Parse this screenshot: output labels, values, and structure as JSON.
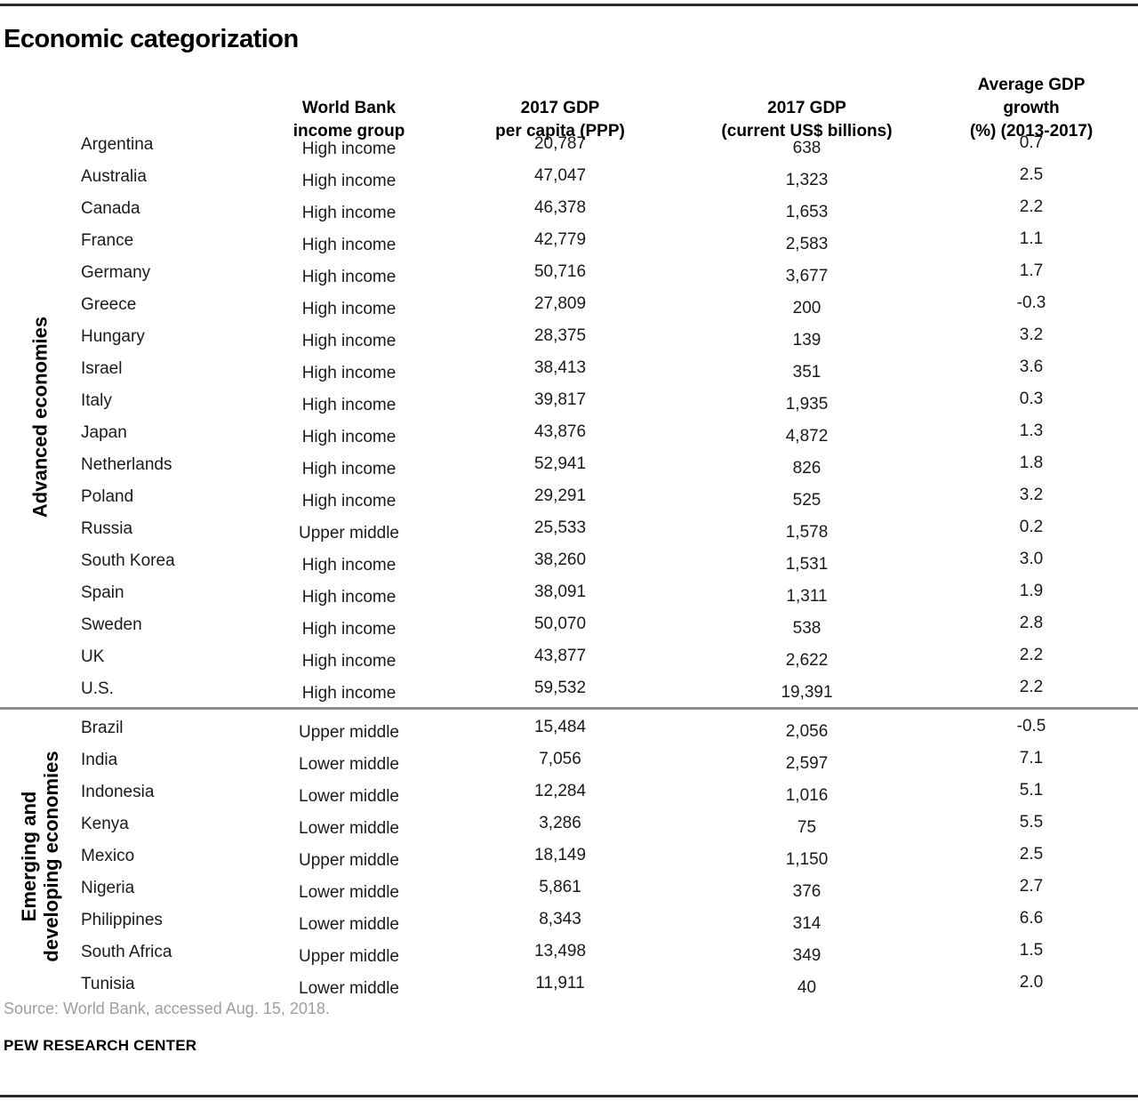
{
  "title": "Economic categorization",
  "colors": {
    "text": "#1a1a1a",
    "source_gray": "#9e9e9e",
    "section_divider": "#8c8c8c",
    "top_bottom_rule": "#2b2b2b"
  },
  "chart_data": {
    "type": "table",
    "title": "Economic categorization",
    "col_headers": [
      [
        "World Bank",
        "income group"
      ],
      [
        "2017 GDP",
        "per capita (PPP)"
      ],
      [
        "2017 GDP",
        "(current US$ billions)"
      ],
      [
        "Average GDP growth",
        "(%) (2013-2017)"
      ]
    ],
    "sections": [
      {
        "label": "Advanced economies",
        "label_lines": [
          "Advanced economies"
        ],
        "rows": [
          {
            "country": "Argentina",
            "income_group": "High income",
            "gdp_per_capita_ppp": "20,787",
            "gdp_current_usd_billions": "638",
            "avg_gdp_growth_pct": "0.7"
          },
          {
            "country": "Australia",
            "income_group": "High income",
            "gdp_per_capita_ppp": "47,047",
            "gdp_current_usd_billions": "1,323",
            "avg_gdp_growth_pct": "2.5"
          },
          {
            "country": "Canada",
            "income_group": "High income",
            "gdp_per_capita_ppp": "46,378",
            "gdp_current_usd_billions": "1,653",
            "avg_gdp_growth_pct": "2.2"
          },
          {
            "country": "France",
            "income_group": "High income",
            "gdp_per_capita_ppp": "42,779",
            "gdp_current_usd_billions": "2,583",
            "avg_gdp_growth_pct": "1.1"
          },
          {
            "country": "Germany",
            "income_group": "High income",
            "gdp_per_capita_ppp": "50,716",
            "gdp_current_usd_billions": "3,677",
            "avg_gdp_growth_pct": "1.7"
          },
          {
            "country": "Greece",
            "income_group": "High income",
            "gdp_per_capita_ppp": "27,809",
            "gdp_current_usd_billions": "200",
            "avg_gdp_growth_pct": "-0.3"
          },
          {
            "country": "Hungary",
            "income_group": "High income",
            "gdp_per_capita_ppp": "28,375",
            "gdp_current_usd_billions": "139",
            "avg_gdp_growth_pct": "3.2"
          },
          {
            "country": "Israel",
            "income_group": "High income",
            "gdp_per_capita_ppp": "38,413",
            "gdp_current_usd_billions": "351",
            "avg_gdp_growth_pct": "3.6"
          },
          {
            "country": "Italy",
            "income_group": "High income",
            "gdp_per_capita_ppp": "39,817",
            "gdp_current_usd_billions": "1,935",
            "avg_gdp_growth_pct": "0.3"
          },
          {
            "country": "Japan",
            "income_group": "High income",
            "gdp_per_capita_ppp": "43,876",
            "gdp_current_usd_billions": "4,872",
            "avg_gdp_growth_pct": "1.3"
          },
          {
            "country": "Netherlands",
            "income_group": "High income",
            "gdp_per_capita_ppp": "52,941",
            "gdp_current_usd_billions": "826",
            "avg_gdp_growth_pct": "1.8"
          },
          {
            "country": "Poland",
            "income_group": "High income",
            "gdp_per_capita_ppp": "29,291",
            "gdp_current_usd_billions": "525",
            "avg_gdp_growth_pct": "3.2"
          },
          {
            "country": "Russia",
            "income_group": "Upper middle",
            "gdp_per_capita_ppp": "25,533",
            "gdp_current_usd_billions": "1,578",
            "avg_gdp_growth_pct": "0.2"
          },
          {
            "country": "South Korea",
            "income_group": "High income",
            "gdp_per_capita_ppp": "38,260",
            "gdp_current_usd_billions": "1,531",
            "avg_gdp_growth_pct": "3.0"
          },
          {
            "country": "Spain",
            "income_group": "High income",
            "gdp_per_capita_ppp": "38,091",
            "gdp_current_usd_billions": "1,311",
            "avg_gdp_growth_pct": "1.9"
          },
          {
            "country": "Sweden",
            "income_group": "High income",
            "gdp_per_capita_ppp": "50,070",
            "gdp_current_usd_billions": "538",
            "avg_gdp_growth_pct": "2.8"
          },
          {
            "country": "UK",
            "income_group": "High income",
            "gdp_per_capita_ppp": "43,877",
            "gdp_current_usd_billions": "2,622",
            "avg_gdp_growth_pct": "2.2"
          },
          {
            "country": "U.S.",
            "income_group": "High income",
            "gdp_per_capita_ppp": "59,532",
            "gdp_current_usd_billions": "19,391",
            "avg_gdp_growth_pct": "2.2"
          }
        ]
      },
      {
        "label": "Emerging and developing economies",
        "label_lines": [
          "Emerging and",
          "developing economies"
        ],
        "rows": [
          {
            "country": "Brazil",
            "income_group": "Upper middle",
            "gdp_per_capita_ppp": "15,484",
            "gdp_current_usd_billions": "2,056",
            "avg_gdp_growth_pct": "-0.5"
          },
          {
            "country": "India",
            "income_group": "Lower middle",
            "gdp_per_capita_ppp": "7,056",
            "gdp_current_usd_billions": "2,597",
            "avg_gdp_growth_pct": "7.1"
          },
          {
            "country": "Indonesia",
            "income_group": "Lower middle",
            "gdp_per_capita_ppp": "12,284",
            "gdp_current_usd_billions": "1,016",
            "avg_gdp_growth_pct": "5.1"
          },
          {
            "country": "Kenya",
            "income_group": "Lower middle",
            "gdp_per_capita_ppp": "3,286",
            "gdp_current_usd_billions": "75",
            "avg_gdp_growth_pct": "5.5"
          },
          {
            "country": "Mexico",
            "income_group": "Upper middle",
            "gdp_per_capita_ppp": "18,149",
            "gdp_current_usd_billions": "1,150",
            "avg_gdp_growth_pct": "2.5"
          },
          {
            "country": "Nigeria",
            "income_group": "Lower middle",
            "gdp_per_capita_ppp": "5,861",
            "gdp_current_usd_billions": "376",
            "avg_gdp_growth_pct": "2.7"
          },
          {
            "country": "Philippines",
            "income_group": "Lower middle",
            "gdp_per_capita_ppp": "8,343",
            "gdp_current_usd_billions": "314",
            "avg_gdp_growth_pct": "6.6"
          },
          {
            "country": "South Africa",
            "income_group": "Upper middle",
            "gdp_per_capita_ppp": "13,498",
            "gdp_current_usd_billions": "349",
            "avg_gdp_growth_pct": "1.5"
          },
          {
            "country": "Tunisia",
            "income_group": "Lower middle",
            "gdp_per_capita_ppp": "11,911",
            "gdp_current_usd_billions": "40",
            "avg_gdp_growth_pct": "2.0"
          }
        ]
      }
    ]
  },
  "footer": {
    "source": "Source: World Bank, accessed Aug. 15, 2018.",
    "brand": "PEW RESEARCH CENTER"
  }
}
